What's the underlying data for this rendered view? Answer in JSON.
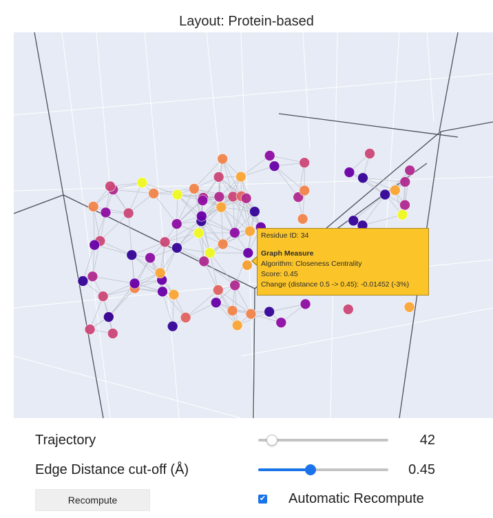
{
  "layout_title": "Layout: Protein-based",
  "tooltip": {
    "residue": "Residue ID: 34",
    "heading": "Graph Measure",
    "algorithm": "Algorithm: Closeness Centrality",
    "score": "Score: 0.45",
    "change": "Change (distance 0.5 -> 0.45): -0.01452 (-3%)"
  },
  "controls": {
    "trajectory_label": "Trajectory",
    "trajectory_value": "42",
    "trajectory_slider_fraction": 0.1,
    "cutoff_label": "Edge Distance cut-off (Å)",
    "cutoff_value": "0.45",
    "cutoff_slider_fraction": 0.4,
    "recompute_label": "Recompute",
    "auto_label": "Automatic Recompute",
    "auto_checked": true,
    "checkmark": "✔"
  },
  "colors": {
    "plot_bg": "#e6ebf5",
    "grid": "#ffffff",
    "axis": "#4a4f5a",
    "edge": "#b9bec8",
    "tooltip_bg": "#fbc52a",
    "accent": "#1a73e8",
    "node_palette": [
      "#350498",
      "#6a00a8",
      "#8f0da4",
      "#b12a90",
      "#cc4778",
      "#e16462",
      "#f2844b",
      "#fca636",
      "#f0f921"
    ]
  }
}
